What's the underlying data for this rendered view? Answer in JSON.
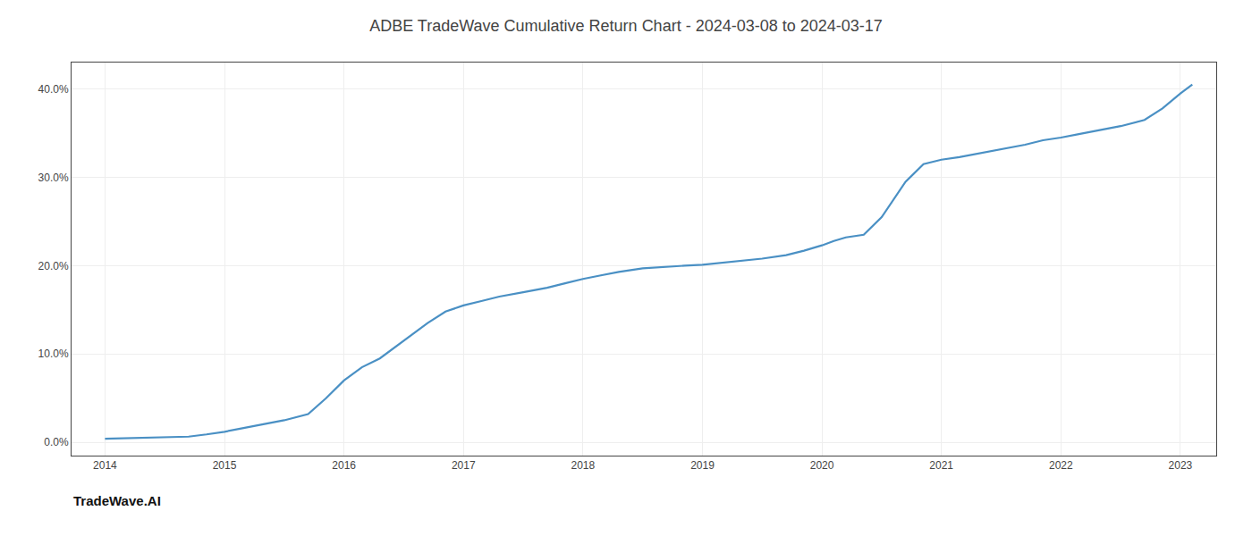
{
  "chart_data": {
    "type": "line",
    "title": "ADBE TradeWave Cumulative Return Chart - 2024-03-08 to 2024-03-17",
    "annotations": [
      "TradeWave.AI"
    ],
    "x": [
      2014.0,
      2014.15,
      2014.3,
      2014.5,
      2014.7,
      2014.85,
      2015.0,
      2015.15,
      2015.3,
      2015.5,
      2015.7,
      2015.85,
      2016.0,
      2016.15,
      2016.3,
      2016.5,
      2016.7,
      2016.85,
      2017.0,
      2017.15,
      2017.3,
      2017.5,
      2017.7,
      2017.85,
      2018.0,
      2018.15,
      2018.3,
      2018.5,
      2018.7,
      2018.85,
      2019.0,
      2019.15,
      2019.3,
      2019.5,
      2019.7,
      2019.85,
      2020.0,
      2020.1,
      2020.2,
      2020.35,
      2020.5,
      2020.7,
      2020.85,
      2021.0,
      2021.15,
      2021.3,
      2021.5,
      2021.7,
      2021.85,
      2022.0,
      2022.15,
      2022.3,
      2022.5,
      2022.7,
      2022.85,
      2023.0,
      2023.1
    ],
    "values": [
      0.4,
      0.45,
      0.5,
      0.55,
      0.65,
      0.9,
      1.2,
      1.6,
      2.0,
      2.5,
      3.2,
      5.0,
      7.0,
      8.5,
      9.5,
      11.5,
      13.5,
      14.8,
      15.5,
      16.0,
      16.5,
      17.0,
      17.5,
      18.0,
      18.5,
      18.9,
      19.3,
      19.7,
      19.9,
      20.0,
      20.1,
      20.3,
      20.5,
      20.8,
      21.2,
      21.7,
      22.3,
      22.8,
      23.2,
      23.5,
      25.5,
      29.5,
      31.5,
      32.0,
      32.3,
      32.7,
      33.2,
      33.7,
      34.2,
      34.5,
      34.9,
      35.3,
      35.8,
      36.5,
      37.8,
      39.5,
      40.5
    ],
    "color": "#4a90c4",
    "xlim": [
      2013.72,
      2023.3
    ],
    "xticks": [
      2014,
      2015,
      2016,
      2017,
      2018,
      2019,
      2020,
      2021,
      2022,
      2023
    ],
    "ylim": [
      -1.5,
      43.0
    ],
    "yticks": [
      {
        "value": 0.0,
        "label": "0.0%"
      },
      {
        "value": 10.0,
        "label": "10.0%"
      },
      {
        "value": 20.0,
        "label": "20.0%"
      },
      {
        "value": 30.0,
        "label": "30.0%"
      },
      {
        "value": 40.0,
        "label": "40.0%"
      }
    ],
    "grid": true
  }
}
